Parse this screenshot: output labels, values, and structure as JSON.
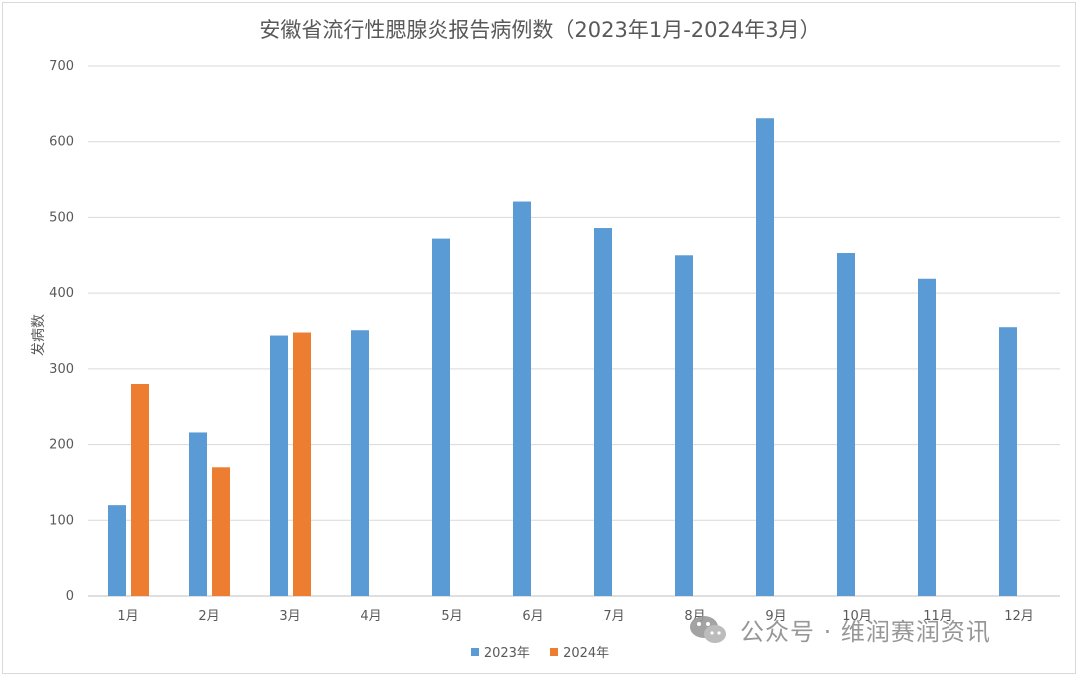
{
  "chart_data": {
    "type": "bar",
    "title": "安徽省流行性腮腺炎报告病例数（2023年1月-2024年3月）",
    "xlabel": "",
    "ylabel": "发病数",
    "categories": [
      "1月",
      "2月",
      "3月",
      "4月",
      "5月",
      "6月",
      "7月",
      "8月",
      "9月",
      "10月",
      "11月",
      "12月"
    ],
    "ylim": [
      0,
      700
    ],
    "yticks": [
      0,
      100,
      200,
      300,
      400,
      500,
      600,
      700
    ],
    "grid": true,
    "legend_position": "bottom",
    "series": [
      {
        "name": "2023年",
        "color": "#5b9bd5",
        "values": [
          120,
          216,
          344,
          351,
          472,
          521,
          486,
          450,
          631,
          453,
          419,
          355
        ]
      },
      {
        "name": "2024年",
        "color": "#ed7d31",
        "values": [
          280,
          170,
          348,
          null,
          null,
          null,
          null,
          null,
          null,
          null,
          null,
          null
        ]
      }
    ]
  },
  "watermark": {
    "text": "公众号 · 维润赛润资讯",
    "icon": "wechat-icon"
  }
}
